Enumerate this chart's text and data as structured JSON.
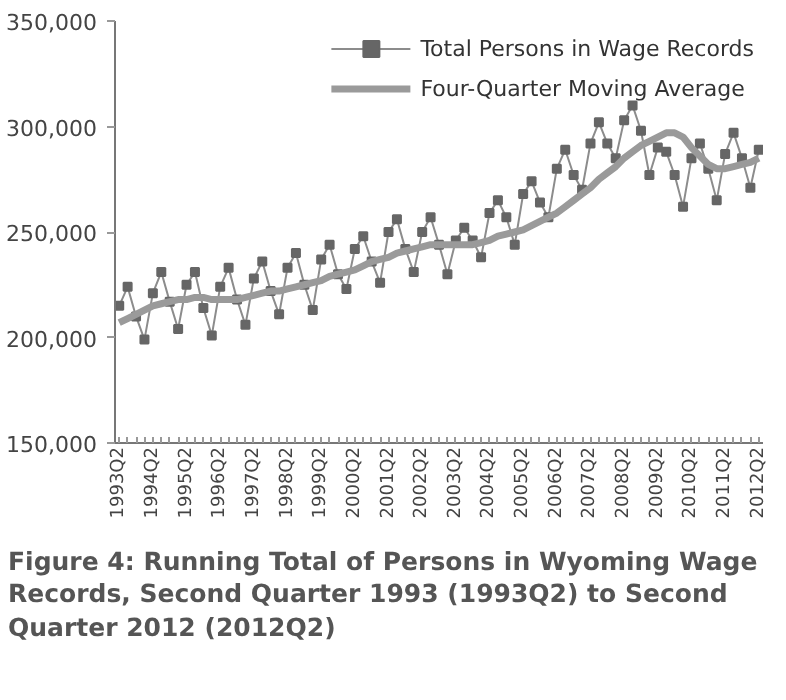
{
  "chart_data": {
    "type": "line",
    "title": "Figure 4: Running Total of Persons in Wyoming Wage Records, Second Quarter 1993 (1993Q2) to Second Quarter 2012 (2012Q2)",
    "categories": [
      "1993Q2",
      null,
      null,
      null,
      "1994Q2",
      null,
      null,
      null,
      "1995Q2",
      null,
      null,
      null,
      "1996Q2",
      null,
      null,
      null,
      "1997Q2",
      null,
      null,
      null,
      "1998Q2",
      null,
      null,
      null,
      "1999Q2",
      null,
      null,
      null,
      "2000Q2",
      null,
      null,
      null,
      "2001Q2",
      null,
      null,
      null,
      "2002Q2",
      null,
      null,
      null,
      "2003Q2",
      null,
      null,
      null,
      "2004Q2",
      null,
      null,
      null,
      "2005Q2",
      null,
      null,
      null,
      "2006Q2",
      null,
      null,
      null,
      "2007Q2",
      null,
      null,
      null,
      "2008Q2",
      null,
      null,
      null,
      "2009Q2",
      null,
      null,
      null,
      "2010Q2",
      null,
      null,
      null,
      "2011Q2",
      null,
      null,
      null,
      "2012Q2"
    ],
    "series": [
      {
        "name": "Total Persons in Wage Records",
        "color": "#8c8c8c",
        "marker": "square",
        "values": [
          215000,
          224000,
          210000,
          199000,
          221000,
          231000,
          217000,
          204000,
          225000,
          231000,
          214000,
          201000,
          224000,
          233000,
          218000,
          206000,
          228000,
          236000,
          222000,
          211000,
          233000,
          240000,
          225000,
          213000,
          237000,
          244000,
          230000,
          223000,
          242000,
          248000,
          236000,
          226000,
          250000,
          256000,
          242000,
          231000,
          250000,
          257000,
          244000,
          230000,
          246000,
          252000,
          246000,
          238000,
          259000,
          265000,
          257000,
          244000,
          268000,
          274000,
          264000,
          257000,
          280000,
          289000,
          277000,
          270000,
          292000,
          302000,
          292000,
          285000,
          303000,
          310000,
          298000,
          277000,
          290000,
          288000,
          277000,
          262000,
          285000,
          292000,
          280000,
          265000,
          287000,
          297000,
          285000,
          271000,
          289000
        ]
      },
      {
        "name": "Four-Quarter Moving Average",
        "color": "#9a9a9a",
        "marker": "none",
        "values": [
          207000,
          209000,
          211000,
          213000,
          215000,
          216000,
          217000,
          218000,
          218000,
          219000,
          219000,
          218000,
          218000,
          218000,
          218000,
          219000,
          220000,
          221000,
          222000,
          222000,
          223000,
          224000,
          225000,
          226000,
          227000,
          229000,
          230000,
          231000,
          232000,
          234000,
          236000,
          237000,
          238000,
          240000,
          241000,
          242000,
          243000,
          244000,
          244000,
          244000,
          244000,
          244000,
          244000,
          245000,
          246000,
          248000,
          249000,
          250000,
          251000,
          253000,
          255000,
          257000,
          259000,
          262000,
          265000,
          268000,
          271000,
          275000,
          278000,
          281000,
          285000,
          288000,
          291000,
          293000,
          295000,
          297000,
          297000,
          295000,
          290000,
          286000,
          282000,
          280000,
          280000,
          281000,
          282000,
          283000,
          285000
        ]
      }
    ],
    "ylim": [
      150000,
      350000
    ],
    "yticks": [
      {
        "value": 150000,
        "label": "150,000"
      },
      {
        "value": 200000,
        "label": "200,000"
      },
      {
        "value": 250000,
        "label": "250,000"
      },
      {
        "value": 300000,
        "label": "300,000"
      },
      {
        "value": 350000,
        "label": "350,000"
      }
    ],
    "grid": false,
    "legend": "top right"
  }
}
